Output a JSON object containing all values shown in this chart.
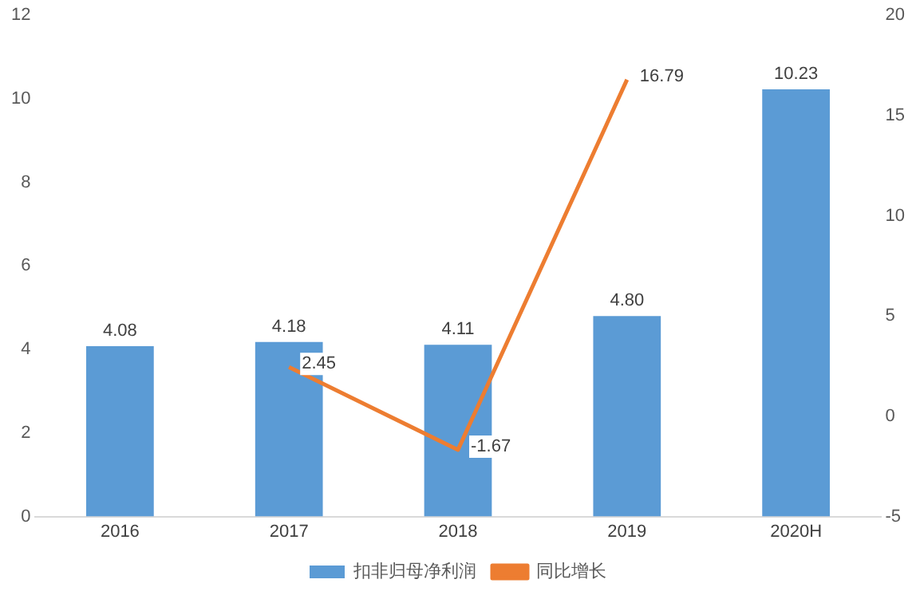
{
  "chart_data": {
    "type": "bar",
    "categories": [
      "2016",
      "2017",
      "2018",
      "2019",
      "2020H"
    ],
    "series": [
      {
        "name": "扣非归母净利润",
        "color": "#5b9bd5",
        "values": [
          4.08,
          4.18,
          4.11,
          4.8,
          10.23
        ],
        "value_labels": [
          "4.08",
          "4.18",
          "4.11",
          "4.80",
          "10.23"
        ]
      },
      {
        "name": "同比增长",
        "type": "line",
        "axis": "y2",
        "color": "#ed7d31",
        "marker": "none",
        "values": [
          null,
          2.45,
          -1.67,
          16.79,
          null
        ],
        "value_labels": [
          null,
          "2.45",
          "-1.67",
          "16.79",
          null
        ]
      }
    ],
    "ylim": [
      0,
      12
    ],
    "yticks": [
      0,
      2,
      4,
      6,
      8,
      10,
      12
    ],
    "y2lim": [
      -5,
      20
    ],
    "y2ticks": [
      -5,
      0,
      5,
      10,
      15,
      20
    ],
    "grid": false,
    "legend": "bottom"
  }
}
